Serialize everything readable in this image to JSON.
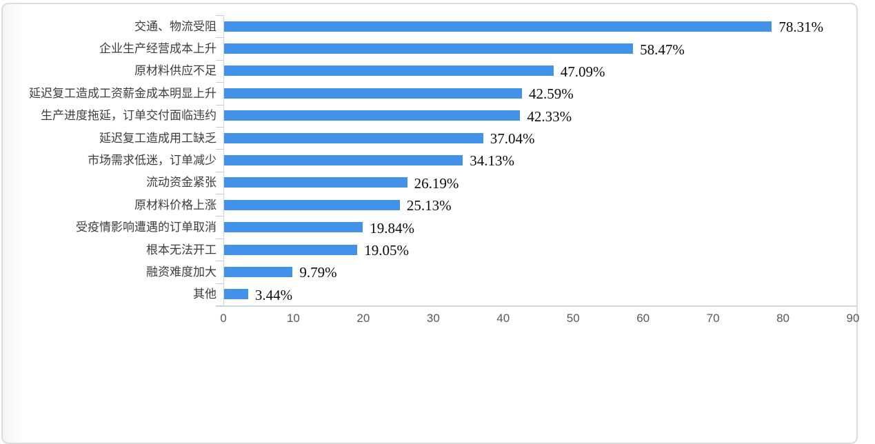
{
  "chart_data": {
    "type": "bar",
    "orientation": "horizontal",
    "categories": [
      "交通、物流受阻",
      "企业生产经营成本上升",
      "原材料供应不足",
      "延迟复工造成工资薪金成本明显上升",
      "生产进度拖延，订单交付面临违约",
      "延迟复工造成用工缺乏",
      "市场需求低迷，订单减少",
      "流动资金紧张",
      "原材料价格上涨",
      "受疫情影响遭遇的订单取消",
      "根本无法开工",
      "融资难度加大",
      "其他"
    ],
    "values": [
      78.31,
      58.47,
      47.09,
      42.59,
      42.33,
      37.04,
      34.13,
      26.19,
      25.13,
      19.84,
      19.05,
      9.79,
      3.44
    ],
    "value_labels": [
      "78.31%",
      "58.47%",
      "47.09%",
      "42.59%",
      "42.33%",
      "37.04%",
      "34.13%",
      "26.19%",
      "25.13%",
      "19.84%",
      "19.05%",
      "9.79%",
      "3.44%"
    ],
    "xlim": [
      0,
      90
    ],
    "x_ticks": [
      "0",
      "10",
      "20",
      "30",
      "40",
      "50",
      "60",
      "70",
      "80",
      "90"
    ],
    "grid": false,
    "legend": "none",
    "title": ""
  },
  "colors": {
    "bar": "#4292E8",
    "value_label": "#0a0a0a",
    "category_label": "#3d3d3d",
    "axis_tick_label": "#595959",
    "y_axis_line": "#d4d4d4",
    "x_axis_line": "#ccdbe2",
    "card_border": "#dcdcdc",
    "card_background": "#ffffff"
  }
}
